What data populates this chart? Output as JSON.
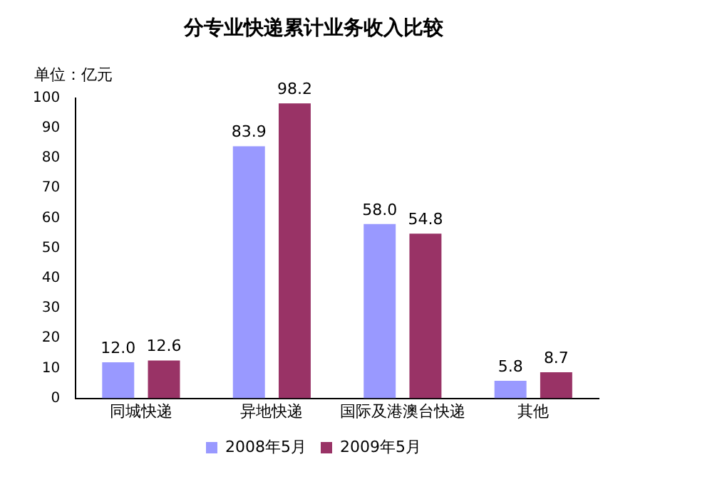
{
  "chart_data": {
    "type": "bar",
    "title": "分专业快递累计业务收入比较",
    "ylabel": "单位：亿元",
    "categories": [
      "同城快递",
      "异地快递",
      "国际及港澳台快递",
      "其他"
    ],
    "series": [
      {
        "name": "2008年5月",
        "color": "#9999ff",
        "values": [
          12.0,
          83.9,
          58.0,
          5.8
        ],
        "value_labels": [
          "12.0",
          "83.9",
          "58.0",
          "5.8"
        ]
      },
      {
        "name": "2009年5月",
        "color": "#993366",
        "values": [
          12.6,
          98.2,
          54.8,
          8.7
        ],
        "value_labels": [
          "12.6",
          "98.2",
          "54.8",
          "8.7"
        ]
      }
    ],
    "ylim": [
      0,
      100
    ],
    "yticks": [
      0,
      10,
      20,
      30,
      40,
      50,
      60,
      70,
      80,
      90,
      100
    ],
    "grid": false,
    "legend": "bottom"
  }
}
